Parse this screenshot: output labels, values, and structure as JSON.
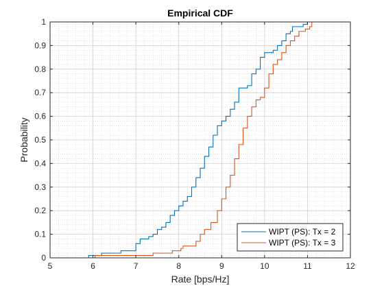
{
  "chart_data": {
    "type": "line",
    "step": true,
    "title": "Empirical CDF",
    "xlabel": "Rate [bps/Hz]",
    "ylabel": "Probability",
    "xlim": [
      5,
      12
    ],
    "ylim": [
      0,
      1
    ],
    "xticks": [
      5,
      6,
      7,
      8,
      9,
      10,
      11,
      12
    ],
    "yticks": [
      0,
      0.1,
      0.2,
      0.3,
      0.4,
      0.5,
      0.6,
      0.7,
      0.8,
      0.9,
      1
    ],
    "grid": true,
    "minor_grid": true,
    "legend_position": "bottom-right",
    "series": [
      {
        "name": "WIPT (PS): Tx = 2",
        "color": "#0072BD",
        "points": [
          [
            5.9,
            0
          ],
          [
            5.9,
            0.01
          ],
          [
            6.2,
            0.01
          ],
          [
            6.2,
            0.02
          ],
          [
            6.65,
            0.02
          ],
          [
            6.65,
            0.03
          ],
          [
            7.0,
            0.03
          ],
          [
            7.0,
            0.06
          ],
          [
            7.05,
            0.06
          ],
          [
            7.1,
            0.08
          ],
          [
            7.25,
            0.08
          ],
          [
            7.3,
            0.09
          ],
          [
            7.4,
            0.1
          ],
          [
            7.5,
            0.12
          ],
          [
            7.6,
            0.13
          ],
          [
            7.7,
            0.15
          ],
          [
            7.8,
            0.18
          ],
          [
            7.9,
            0.2
          ],
          [
            8.0,
            0.22
          ],
          [
            8.1,
            0.24
          ],
          [
            8.2,
            0.26
          ],
          [
            8.3,
            0.3
          ],
          [
            8.4,
            0.34
          ],
          [
            8.5,
            0.38
          ],
          [
            8.6,
            0.43
          ],
          [
            8.7,
            0.47
          ],
          [
            8.8,
            0.52
          ],
          [
            8.9,
            0.56
          ],
          [
            9.0,
            0.58
          ],
          [
            9.1,
            0.6
          ],
          [
            9.2,
            0.63
          ],
          [
            9.3,
            0.66
          ],
          [
            9.4,
            0.72
          ],
          [
            9.6,
            0.73
          ],
          [
            9.7,
            0.78
          ],
          [
            9.8,
            0.8
          ],
          [
            9.9,
            0.85
          ],
          [
            10.0,
            0.87
          ],
          [
            10.2,
            0.88
          ],
          [
            10.3,
            0.9
          ],
          [
            10.4,
            0.92
          ],
          [
            10.5,
            0.95
          ],
          [
            10.6,
            0.96
          ],
          [
            10.65,
            0.98
          ],
          [
            10.9,
            0.99
          ],
          [
            11.0,
            0.99
          ],
          [
            11.0,
            1
          ]
        ]
      },
      {
        "name": "WIPT (PS): Tx = 3",
        "color": "#D95319",
        "points": [
          [
            6.05,
            0
          ],
          [
            6.05,
            0.01
          ],
          [
            7.3,
            0.01
          ],
          [
            7.4,
            0.02
          ],
          [
            7.8,
            0.02
          ],
          [
            7.85,
            0.03
          ],
          [
            8.05,
            0.04
          ],
          [
            8.1,
            0.05
          ],
          [
            8.4,
            0.07
          ],
          [
            8.5,
            0.1
          ],
          [
            8.6,
            0.12
          ],
          [
            8.75,
            0.15
          ],
          [
            8.9,
            0.2
          ],
          [
            9.0,
            0.25
          ],
          [
            9.1,
            0.3
          ],
          [
            9.2,
            0.35
          ],
          [
            9.3,
            0.42
          ],
          [
            9.4,
            0.48
          ],
          [
            9.5,
            0.55
          ],
          [
            9.6,
            0.6
          ],
          [
            9.7,
            0.64
          ],
          [
            9.8,
            0.67
          ],
          [
            9.9,
            0.68
          ],
          [
            10.0,
            0.72
          ],
          [
            10.1,
            0.78
          ],
          [
            10.2,
            0.82
          ],
          [
            10.3,
            0.84
          ],
          [
            10.4,
            0.87
          ],
          [
            10.5,
            0.9
          ],
          [
            10.6,
            0.92
          ],
          [
            10.7,
            0.94
          ],
          [
            10.8,
            0.96
          ],
          [
            10.95,
            0.97
          ],
          [
            11.05,
            0.98
          ],
          [
            11.1,
            1
          ]
        ]
      }
    ]
  }
}
